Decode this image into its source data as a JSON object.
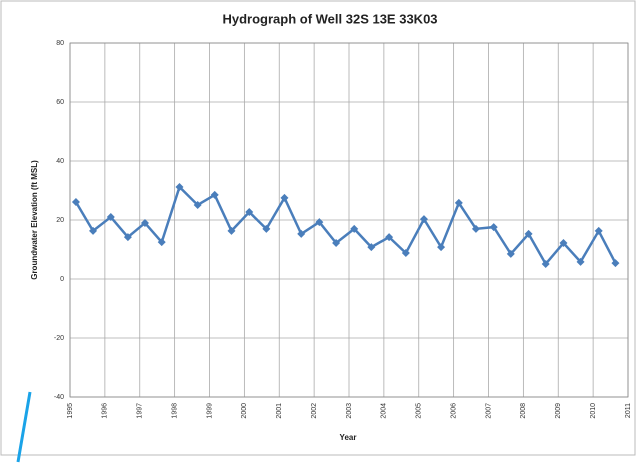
{
  "chart_data": {
    "type": "line",
    "title": "Hydrograph of Well 32S 13E 33K03",
    "x_label": "Year",
    "y_label": "Groundwater Elevation (ft MSL)",
    "color": "#4a7ebb",
    "grid": true,
    "xlim": [
      1995,
      2011
    ],
    "xticks": [
      1995,
      1996,
      1997,
      1998,
      1999,
      2000,
      2001,
      2002,
      2003,
      2004,
      2005,
      2006,
      2007,
      2008,
      2009,
      2010,
      2011
    ],
    "ylim": [
      -40,
      80
    ],
    "yticks": [
      -40,
      -20,
      0,
      20,
      40,
      60,
      80
    ],
    "x": [
      1995.17,
      1995.66,
      1996.17,
      1996.66,
      1997.15,
      1997.63,
      1998.14,
      1998.66,
      1999.15,
      1999.63,
      2000.14,
      2000.63,
      2001.15,
      2001.63,
      2002.15,
      2002.63,
      2003.15,
      2003.64,
      2004.15,
      2004.63,
      2005.15,
      2005.64,
      2006.15,
      2006.64,
      2007.15,
      2007.64,
      2008.15,
      2008.64,
      2009.15,
      2009.64,
      2010.16,
      2010.64
    ],
    "values": [
      26.1,
      16.3,
      21.0,
      14.2,
      19.0,
      12.5,
      31.2,
      25.1,
      28.5,
      16.3,
      22.7,
      17.0,
      27.5,
      15.3,
      19.3,
      12.2,
      17.0,
      10.8,
      14.2,
      8.8,
      20.3,
      10.8,
      25.8,
      17.0,
      17.6,
      8.5,
      15.3,
      5.1,
      12.2,
      5.8,
      16.3,
      5.4
    ]
  }
}
